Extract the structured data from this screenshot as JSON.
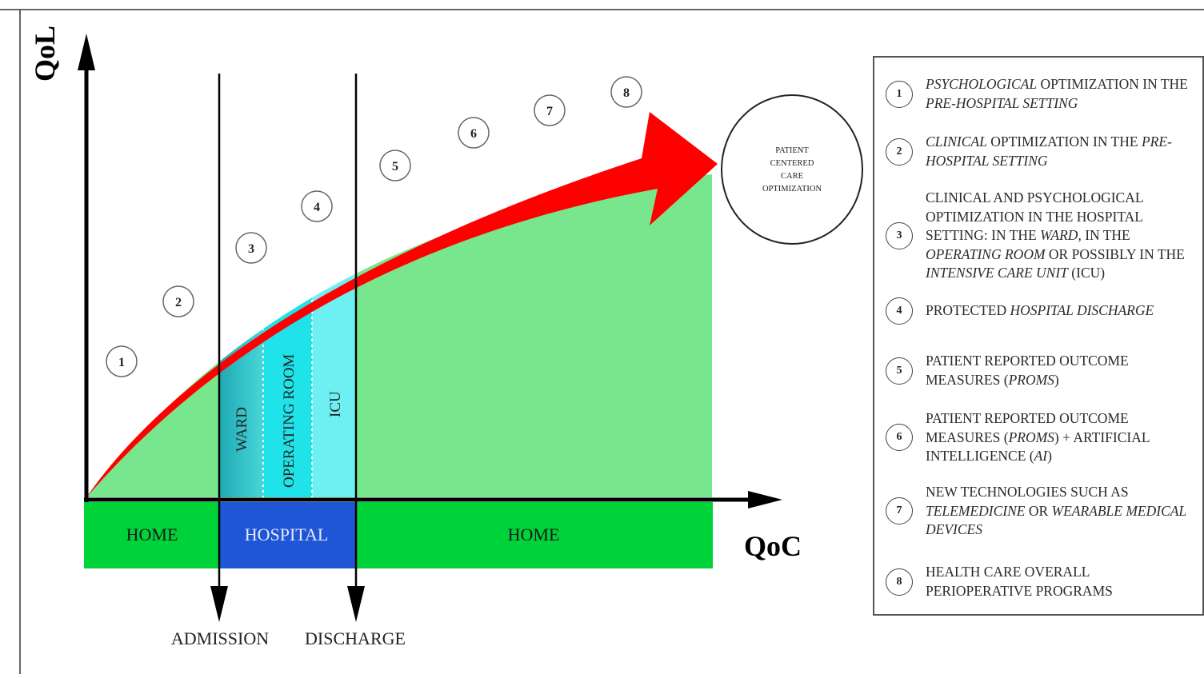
{
  "header_fragment": "",
  "axes": {
    "y_label": "QoL",
    "x_label": "QoC"
  },
  "markers": {
    "admission": "ADMISSION",
    "discharge": "DISCHARGE"
  },
  "settings_bar": {
    "home_left": "HOME",
    "hospital": "HOSPITAL",
    "home_right": "HOME"
  },
  "hospital_units": {
    "ward": "WARD",
    "operating_room": "OPERATING ROOM",
    "icu": "ICU"
  },
  "goal_circle": {
    "line1": "PATIENT",
    "line2": "CENTERED",
    "line3": "CARE",
    "line4": "OPTIMIZATION"
  },
  "steps": [
    "1",
    "2",
    "3",
    "4",
    "5",
    "6",
    "7",
    "8"
  ],
  "legend": [
    {
      "num": "1",
      "segments": [
        {
          "text": "PSYCHOLOGICAL",
          "italic": true
        },
        {
          "text": " OPTIMIZATION IN THE "
        },
        {
          "text": "PRE-HOSPITAL SETTING",
          "italic": true
        }
      ]
    },
    {
      "num": "2",
      "segments": [
        {
          "text": "CLINICAL",
          "italic": true
        },
        {
          "text": " OPTIMIZATION IN THE "
        },
        {
          "text": "PRE-HOSPITAL SETTING",
          "italic": true
        }
      ]
    },
    {
      "num": "3",
      "segments": [
        {
          "text": "CLINICAL AND PSYCHOLOGICAL OPTIMIZATION IN THE HOSPITAL SETTING: IN THE "
        },
        {
          "text": "WARD",
          "italic": true
        },
        {
          "text": ", IN THE "
        },
        {
          "text": "OPERATING ROOM",
          "italic": true
        },
        {
          "text": " OR POSSIBLY IN THE "
        },
        {
          "text": "INTENSIVE CARE UNIT",
          "italic": true
        },
        {
          "text": " (ICU)"
        }
      ]
    },
    {
      "num": "4",
      "segments": [
        {
          "text": "PROTECTED "
        },
        {
          "text": "HOSPITAL DISCHARGE",
          "italic": true
        }
      ]
    },
    {
      "num": "5",
      "segments": [
        {
          "text": "PATIENT REPORTED OUTCOME MEASURES ("
        },
        {
          "text": "PROMS",
          "italic": true
        },
        {
          "text": ")"
        }
      ]
    },
    {
      "num": "6",
      "segments": [
        {
          "text": "PATIENT REPORTED OUTCOME MEASURES ("
        },
        {
          "text": "PROMS",
          "italic": true
        },
        {
          "text": ") + ARTIFICIAL INTELLIGENCE ("
        },
        {
          "text": "AI",
          "italic": true
        },
        {
          "text": ")"
        }
      ]
    },
    {
      "num": "7",
      "segments": [
        {
          "text": "NEW TECHNOLOGIES SUCH AS "
        },
        {
          "text": "TELEMEDICINE",
          "italic": true
        },
        {
          "text": " OR "
        },
        {
          "text": "WEARABLE MEDICAL DEVICES",
          "italic": true
        }
      ]
    },
    {
      "num": "8",
      "segments": [
        {
          "text": "HEALTH CARE OVERALL PERIOPERATIVE PROGRAMS"
        }
      ]
    }
  ],
  "colors": {
    "home_green": "#00d23a",
    "hospital_blue": "#1f56d6",
    "area_green": "#78e68c",
    "ward_teal": "#33c9cf",
    "or_cyan": "#1fe3e8",
    "icu_cyan": "#6ef0f3",
    "arrow_red": "#ff0000",
    "axis_black": "#000000"
  }
}
